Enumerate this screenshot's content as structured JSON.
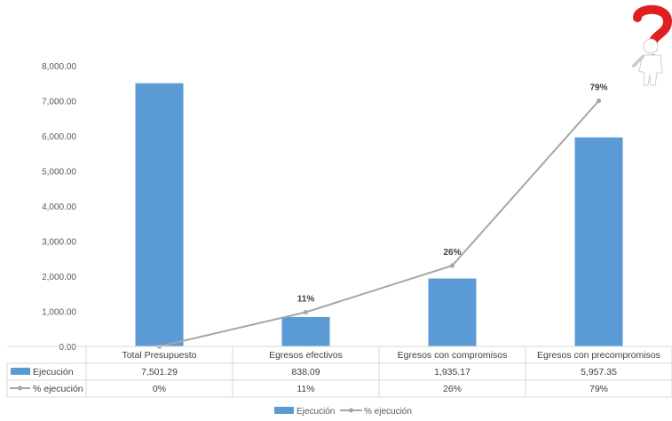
{
  "chart_data": {
    "type": "bar",
    "combo": "bar+line",
    "categories": [
      "Total Presupuesto",
      "Egresos efectivos",
      "Egresos con compromisos",
      "Egresos con precompromisos"
    ],
    "series": [
      {
        "name": "Ejecución",
        "type": "bar",
        "color": "#5B9BD5",
        "values": [
          7501.29,
          838.09,
          1935.17,
          5957.35
        ],
        "table_labels": [
          "7,501.29",
          "838.09",
          "1,935.17",
          "5,957.35"
        ]
      },
      {
        "name": "% ejecución",
        "type": "line",
        "color": "#A6A6A6",
        "values": [
          0,
          11,
          26,
          79
        ],
        "table_labels": [
          "0%",
          "11%",
          "26%",
          "79%"
        ],
        "data_labels": [
          "",
          "11%",
          "26%",
          "79%"
        ]
      }
    ],
    "y_ticks": [
      "0.00",
      "1,000.00",
      "2,000.00",
      "3,000.00",
      "4,000.00",
      "5,000.00",
      "6,000.00",
      "7,000.00",
      "8,000.00"
    ],
    "ylim": [
      0,
      8000
    ],
    "data_table": true,
    "legend_position": "bottom",
    "grid": false
  },
  "decoration": {
    "icon": "question-mark-figure-icon",
    "accent": "#E02020"
  }
}
